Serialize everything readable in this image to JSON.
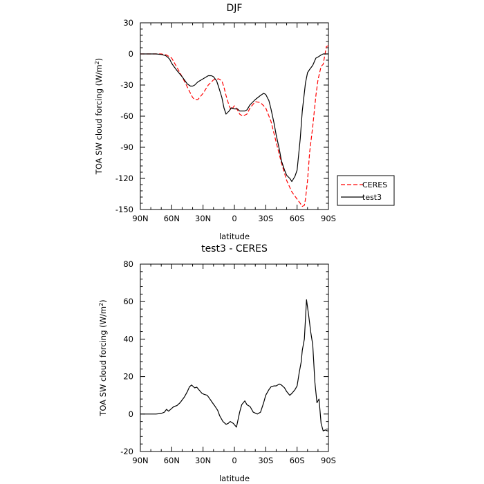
{
  "chart_data": [
    {
      "type": "line",
      "title": "DJF",
      "xlabel": "latitude",
      "ylabel": "TOA SW cloud forcing (W/m",
      "ylabel_sup": "2",
      "ylabel_end": ")",
      "xlim": [
        -90,
        90
      ],
      "ylim": [
        -150,
        30
      ],
      "xticks": [
        -90,
        -60,
        -30,
        0,
        30,
        60,
        90
      ],
      "xticklabels": [
        "90N",
        "60N",
        "30N",
        "0",
        "30S",
        "60S",
        "90S"
      ],
      "yticks": [
        -150,
        -120,
        -90,
        -60,
        -30,
        0,
        30
      ],
      "yticklabels": [
        "-150",
        "-120",
        "-90",
        "-60",
        "-30",
        "0",
        "30"
      ],
      "legend_position": "right",
      "series": [
        {
          "name": "CERES",
          "color": "#ff0000",
          "dash": "dashed",
          "x": [
            -90,
            -85,
            -80,
            -75,
            -70,
            -65,
            -60,
            -55,
            -50,
            -45,
            -42,
            -40,
            -38,
            -35,
            -30,
            -25,
            -20,
            -15,
            -12,
            -10,
            -8,
            -5,
            -3,
            0,
            3,
            5,
            8,
            10,
            12,
            15,
            20,
            25,
            30,
            35,
            40,
            45,
            50,
            55,
            60,
            63,
            65,
            67,
            68,
            70,
            72,
            75,
            78,
            80,
            83,
            85,
            88,
            90
          ],
          "values": [
            0,
            0,
            0,
            0,
            0,
            -1,
            -4,
            -13,
            -22,
            -32,
            -38,
            -42,
            -44,
            -44,
            -38,
            -30,
            -25,
            -24,
            -26,
            -32,
            -40,
            -50,
            -54,
            -50,
            -54,
            -58,
            -60,
            -59,
            -58,
            -52,
            -46,
            -47,
            -52,
            -65,
            -85,
            -105,
            -122,
            -133,
            -140,
            -144,
            -147,
            -146,
            -140,
            -122,
            -95,
            -70,
            -40,
            -25,
            -12,
            -10,
            7,
            8
          ]
        },
        {
          "name": "test3",
          "color": "#000000",
          "dash": "solid",
          "x": [
            -90,
            -85,
            -80,
            -75,
            -70,
            -66,
            -64,
            -62,
            -60,
            -58,
            -55,
            -50,
            -45,
            -42,
            -40,
            -38,
            -35,
            -30,
            -25,
            -22,
            -20,
            -17,
            -15,
            -12,
            -10,
            -8,
            -5,
            -3,
            0,
            3,
            5,
            8,
            10,
            12,
            15,
            20,
            25,
            28,
            30,
            33,
            35,
            38,
            40,
            43,
            45,
            48,
            50,
            53,
            55,
            58,
            60,
            63,
            65,
            68,
            70,
            72,
            75,
            78,
            80,
            83,
            85,
            88,
            90
          ],
          "values": [
            0,
            0,
            0,
            0,
            -0.5,
            -1.5,
            -3,
            -5,
            -9,
            -12,
            -16,
            -22,
            -29,
            -31,
            -31,
            -30,
            -27,
            -24,
            -21,
            -21,
            -22,
            -26,
            -32,
            -42,
            -52,
            -58,
            -55,
            -52,
            -53,
            -53,
            -55,
            -55,
            -55,
            -54,
            -49,
            -44,
            -40,
            -38,
            -39,
            -45,
            -53,
            -67,
            -78,
            -92,
            -103,
            -112,
            -117,
            -120,
            -123,
            -118,
            -112,
            -82,
            -55,
            -28,
            -18,
            -15,
            -11,
            -4,
            -3,
            -1,
            0,
            0,
            0
          ]
        }
      ]
    },
    {
      "type": "line",
      "title": "test3 - CERES",
      "xlabel": "latitude",
      "ylabel": "TOA SW cloud forcing (W/m",
      "ylabel_sup": "2",
      "ylabel_end": ")",
      "xlim": [
        -90,
        90
      ],
      "ylim": [
        -20,
        80
      ],
      "xticks": [
        -90,
        -60,
        -30,
        0,
        30,
        60,
        90
      ],
      "xticklabels": [
        "90N",
        "60N",
        "30N",
        "0",
        "30S",
        "60S",
        "90S"
      ],
      "yticks": [
        -20,
        0,
        20,
        40,
        60,
        80
      ],
      "yticklabels": [
        "-20",
        "0",
        "20",
        "40",
        "60",
        "80"
      ],
      "series": [
        {
          "color": "#000000",
          "dash": "solid",
          "x": [
            -90,
            -85,
            -80,
            -75,
            -70,
            -67,
            -65,
            -63,
            -60,
            -58,
            -55,
            -52,
            -50,
            -48,
            -45,
            -43,
            -41,
            -38,
            -36,
            -34,
            -31,
            -29,
            -26,
            -24,
            -21,
            -19,
            -16,
            -14,
            -11,
            -8,
            -6,
            -4,
            -1,
            2,
            5,
            7,
            10,
            12,
            15,
            18,
            20,
            22,
            25,
            28,
            30,
            33,
            35,
            38,
            40,
            43,
            45,
            48,
            50,
            53,
            55,
            58,
            60,
            62,
            64,
            65,
            67,
            69,
            71,
            73,
            75,
            77,
            79,
            81,
            83,
            85,
            87,
            89,
            90
          ],
          "values": [
            0,
            0,
            0,
            0,
            0.3,
            1,
            2.5,
            1.5,
            3,
            4,
            4.5,
            6,
            7.5,
            9,
            12,
            14.5,
            15.5,
            14,
            14.3,
            13,
            11,
            10.5,
            10,
            8.5,
            6,
            4.5,
            2,
            -1,
            -4,
            -5.5,
            -5,
            -4,
            -5,
            -7,
            1,
            5,
            7,
            5,
            4,
            1,
            0.5,
            0,
            1,
            6,
            10,
            13,
            14.5,
            15,
            15,
            16,
            15.5,
            14,
            12,
            10,
            11,
            13,
            15,
            22,
            28,
            34,
            40,
            61,
            53,
            44,
            37,
            17,
            6,
            8,
            -5,
            -9,
            -8.5,
            -9,
            -9
          ]
        }
      ]
    }
  ]
}
